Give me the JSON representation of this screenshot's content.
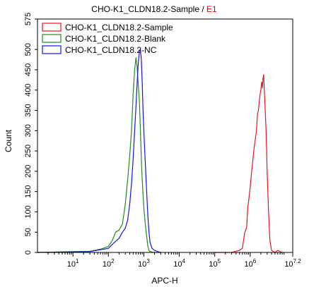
{
  "chart_data": {
    "type": "line",
    "title": "CHO-K1_CLDN18.2-Sample / ",
    "title_gate": "E1",
    "title_gate_color": "#e60000",
    "xlabel": "APC-H",
    "ylabel": "Count",
    "x_scale": "log",
    "xlim": [
      1,
      15848932
    ],
    "ylim": [
      0,
      575
    ],
    "x_ticks": [
      {
        "value": 10,
        "base": "10",
        "exp": "1"
      },
      {
        "value": 100,
        "base": "10",
        "exp": "2"
      },
      {
        "value": 1000,
        "base": "10",
        "exp": "3"
      },
      {
        "value": 10000,
        "base": "10",
        "exp": "4"
      },
      {
        "value": 100000,
        "base": "10",
        "exp": "5"
      },
      {
        "value": 1000000,
        "base": "10",
        "exp": "6"
      },
      {
        "value": 15848932,
        "base": "10",
        "exp": "7.2"
      }
    ],
    "y_ticks": [
      "0",
      "50",
      "100",
      "150",
      "200",
      "250",
      "300",
      "350",
      "400",
      "450",
      "500",
      "575"
    ],
    "legend_position": "top-left",
    "series": [
      {
        "name": "CHO-K1_CLDN18.2-Sample",
        "color": "#e8141e",
        "x": [
          100000,
          300000,
          400000,
          500000,
          550000,
          600000,
          650000,
          700000,
          750000,
          800000,
          850000,
          900000,
          1000000,
          1100000,
          1200000,
          1300000,
          1400000,
          1500000,
          1600000,
          1700000,
          1800000,
          1900000,
          2000000,
          2100000,
          2200000,
          2300000,
          2400000,
          2500000,
          2600000,
          2800000,
          3000000,
          3300000,
          3600000,
          4000000,
          5000000,
          6000000,
          8000000
        ],
        "y": [
          0,
          0,
          3,
          5,
          8,
          10,
          30,
          50,
          55,
          65,
          110,
          125,
          160,
          200,
          230,
          260,
          280,
          300,
          340,
          350,
          370,
          390,
          400,
          420,
          405,
          430,
          438,
          400,
          370,
          300,
          200,
          100,
          30,
          5,
          0,
          5,
          0
        ]
      },
      {
        "name": "CHO-K1_CLDN18.2-Blank",
        "color": "#1e8c1e",
        "x": [
          1,
          10,
          30,
          60,
          100,
          130,
          160,
          200,
          250,
          300,
          350,
          400,
          450,
          500,
          550,
          600,
          650,
          700,
          750,
          800,
          850,
          900,
          1000,
          1100,
          1200,
          1300,
          1400,
          1500,
          2000,
          3000
        ],
        "y": [
          0,
          2,
          3,
          8,
          15,
          30,
          50,
          55,
          70,
          120,
          180,
          240,
          300,
          390,
          450,
          480,
          455,
          410,
          370,
          300,
          230,
          180,
          110,
          70,
          40,
          15,
          5,
          2,
          0,
          0
        ]
      },
      {
        "name": "CHO-K1_CLDN18.2-NC",
        "color": "#1414e6",
        "x": [
          1,
          30,
          100,
          150,
          200,
          250,
          300,
          350,
          400,
          450,
          500,
          550,
          600,
          650,
          700,
          750,
          800,
          850,
          900,
          950,
          1000,
          1100,
          1200,
          1300,
          1400,
          1500,
          1700,
          2000,
          2500,
          3000
        ],
        "y": [
          0,
          2,
          10,
          25,
          35,
          50,
          60,
          80,
          120,
          170,
          230,
          300,
          360,
          420,
          470,
          495,
          500,
          475,
          420,
          350,
          300,
          220,
          150,
          90,
          50,
          25,
          10,
          5,
          2,
          0
        ]
      }
    ]
  }
}
